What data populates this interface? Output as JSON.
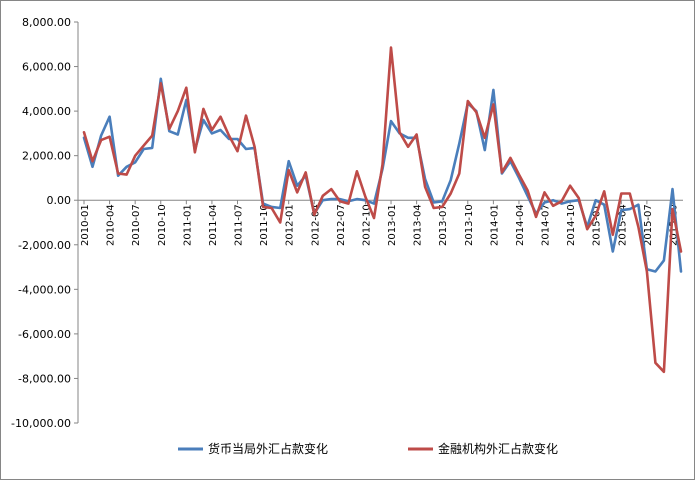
{
  "chart_data": {
    "type": "line",
    "title": "",
    "xlabel": "",
    "ylabel": "",
    "ylim": [
      -10000,
      8000
    ],
    "ytick_step": 2000,
    "ytick_labels": [
      "8,000.00",
      "6,000.00",
      "4,000.00",
      "2,000.00",
      "0.00",
      "-2,000.00",
      "-4,000.00",
      "-6,000.00",
      "-8,000.00",
      "-10,000.00"
    ],
    "x": [
      "2010-01",
      "2010-02",
      "2010-03",
      "2010-04",
      "2010-05",
      "2010-06",
      "2010-07",
      "2010-08",
      "2010-09",
      "2010-10",
      "2010-11",
      "2010-12",
      "2011-01",
      "2011-02",
      "2011-03",
      "2011-04",
      "2011-05",
      "2011-06",
      "2011-07",
      "2011-08",
      "2011-09",
      "2011-10",
      "2011-11",
      "2011-12",
      "2012-01",
      "2012-02",
      "2012-03",
      "2012-04",
      "2012-05",
      "2012-06",
      "2012-07",
      "2012-08",
      "2012-09",
      "2012-10",
      "2012-11",
      "2012-12",
      "2013-01",
      "2013-02",
      "2013-03",
      "2013-04",
      "2013-05",
      "2013-06",
      "2013-07",
      "2013-08",
      "2013-09",
      "2013-10",
      "2013-11",
      "2013-12",
      "2014-01",
      "2014-02",
      "2014-03",
      "2014-04",
      "2014-05",
      "2014-06",
      "2014-07",
      "2014-08",
      "2014-09",
      "2014-10",
      "2014-11",
      "2014-12",
      "2015-01",
      "2015-02",
      "2015-03",
      "2015-04",
      "2015-05",
      "2015-06",
      "2015-07",
      "2015-08",
      "2015-09",
      "2015-10",
      "2015-11"
    ],
    "tick_labels": [
      "2010-01",
      "2010-04",
      "2010-07",
      "2010-10",
      "2011-01",
      "2011-04",
      "2011-07",
      "2011-10",
      "2012-01",
      "2012-04",
      "2012-07",
      "2012-10",
      "2013-01",
      "2013-04",
      "2013-07",
      "2013-10",
      "2014-01",
      "2014-04",
      "2014-07",
      "2014-10",
      "2015-01",
      "2015-04",
      "2015-07",
      "2015-10"
    ],
    "legend_position": "bottom",
    "grid": false,
    "series": [
      {
        "name": "货币当局外汇占款变化",
        "color": "#4a7ebb",
        "values": [
          2800,
          1500,
          2900,
          3750,
          1100,
          1500,
          1700,
          2300,
          2350,
          5450,
          3100,
          2950,
          4500,
          2250,
          3600,
          3000,
          3150,
          2750,
          2750,
          2300,
          2350,
          -150,
          -300,
          -350,
          1750,
          650,
          1100,
          -600,
          0,
          50,
          50,
          -50,
          50,
          0,
          -150,
          1400,
          3550,
          3000,
          2800,
          2800,
          950,
          -100,
          -50,
          900,
          2550,
          4350,
          4000,
          2250,
          4950,
          1200,
          1750,
          1000,
          200,
          -600,
          -100,
          0,
          -150,
          -50,
          0,
          -1200,
          0,
          -200,
          -2300,
          -450,
          -400,
          -200,
          -3100,
          -3200,
          -2700,
          500,
          -3200
        ]
      },
      {
        "name": "金融机构外汇占款变化",
        "color": "#be4b48",
        "values": [
          3050,
          1750,
          2700,
          2850,
          1200,
          1150,
          2000,
          2450,
          2900,
          5250,
          3200,
          4000,
          5050,
          2150,
          4100,
          3150,
          3750,
          2900,
          2200,
          3800,
          2400,
          -300,
          -350,
          -1000,
          1350,
          350,
          1250,
          -650,
          200,
          500,
          -50,
          -150,
          1300,
          150,
          -800,
          1600,
          6850,
          3050,
          2400,
          2950,
          600,
          -350,
          -300,
          300,
          1200,
          4450,
          3950,
          2800,
          4300,
          1250,
          1900,
          1150,
          450,
          -750,
          350,
          -250,
          -50,
          650,
          100,
          -1300,
          -700,
          400,
          -1550,
          300,
          300,
          -1200,
          -3200,
          -7300,
          -7700,
          -400,
          -2300
        ]
      }
    ]
  }
}
